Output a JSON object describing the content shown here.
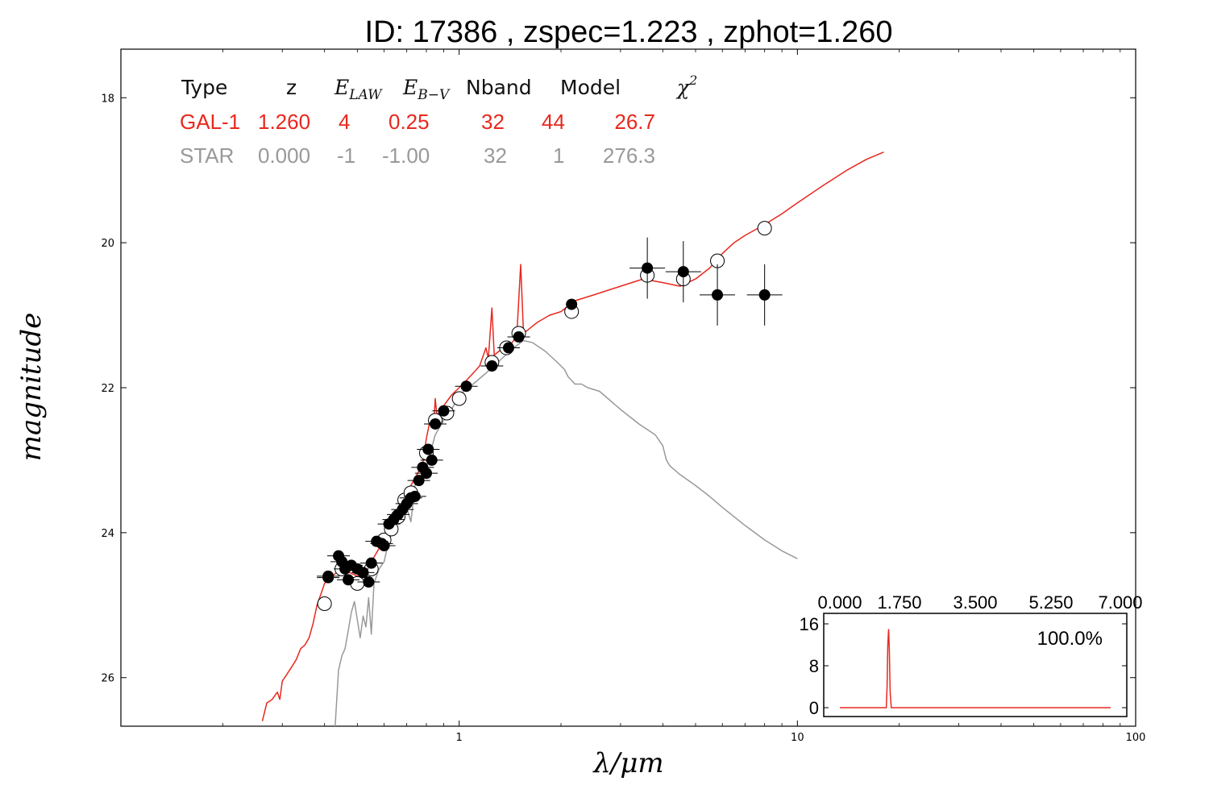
{
  "chart_data": {
    "type": "scatter",
    "title": "ID:  17386 , zspec=1.223 , zphot=1.260",
    "xlabel": "λ/μm",
    "ylabel": "magnitude",
    "x_scale": "log",
    "xlim": [
      0.1,
      100
    ],
    "ylim": [
      26.67,
      17.33
    ],
    "x_ticks": [
      "1",
      "10",
      "100"
    ],
    "y_ticks": [
      "18",
      "20",
      "22",
      "24",
      "26"
    ],
    "table": {
      "headers": [
        "Type",
        "z",
        "E_LAW",
        "E_B−V",
        "Nband",
        "Model",
        "χ²"
      ],
      "rows": [
        {
          "name": "GAL-1",
          "color": "#e8281e",
          "values": [
            "GAL-1",
            "1.260",
            "4",
            "0.25",
            "32",
            "44",
            "26.7"
          ]
        },
        {
          "name": "STAR",
          "color": "#999999",
          "values": [
            "STAR",
            "0.000",
            "-1",
            "-1.00",
            "32",
            "1",
            "276.3"
          ]
        }
      ]
    },
    "series": [
      {
        "kind": "line",
        "color": "#e8281e",
        "points": [
          [
            0.262,
            26.6
          ],
          [
            0.27,
            26.35
          ],
          [
            0.28,
            26.3
          ],
          [
            0.29,
            26.2
          ],
          [
            0.295,
            26.3
          ],
          [
            0.3,
            26.05
          ],
          [
            0.31,
            25.95
          ],
          [
            0.32,
            25.85
          ],
          [
            0.33,
            25.75
          ],
          [
            0.34,
            25.6
          ],
          [
            0.35,
            25.55
          ],
          [
            0.36,
            25.45
          ],
          [
            0.37,
            25.25
          ],
          [
            0.38,
            25.0
          ],
          [
            0.39,
            24.85
          ],
          [
            0.4,
            24.7
          ],
          [
            0.42,
            24.6
          ],
          [
            0.45,
            24.5
          ],
          [
            0.5,
            24.6
          ],
          [
            0.55,
            24.4
          ],
          [
            0.6,
            24.1
          ],
          [
            0.64,
            23.75
          ],
          [
            0.68,
            23.6
          ],
          [
            0.72,
            23.35
          ],
          [
            0.75,
            23.2
          ],
          [
            0.78,
            23.05
          ],
          [
            0.8,
            22.7
          ],
          [
            0.82,
            22.45
          ],
          [
            0.84,
            22.55
          ],
          [
            0.85,
            22.15
          ],
          [
            0.86,
            22.4
          ],
          [
            0.87,
            22.35
          ],
          [
            0.9,
            22.25
          ],
          [
            0.95,
            22.1
          ],
          [
            1.0,
            22.0
          ],
          [
            1.05,
            21.9
          ],
          [
            1.1,
            21.8
          ],
          [
            1.15,
            21.7
          ],
          [
            1.2,
            21.45
          ],
          [
            1.22,
            21.6
          ],
          [
            1.25,
            20.9
          ],
          [
            1.27,
            21.55
          ],
          [
            1.35,
            21.45
          ],
          [
            1.42,
            21.4
          ],
          [
            1.48,
            21.3
          ],
          [
            1.52,
            20.3
          ],
          [
            1.55,
            21.25
          ],
          [
            1.6,
            21.2
          ],
          [
            1.7,
            21.1
          ],
          [
            1.85,
            21.0
          ],
          [
            2.0,
            20.95
          ],
          [
            2.2,
            20.8
          ],
          [
            2.5,
            20.72
          ],
          [
            3.0,
            20.6
          ],
          [
            3.5,
            20.5
          ],
          [
            4.0,
            20.55
          ],
          [
            4.5,
            20.6
          ],
          [
            5.0,
            20.5
          ],
          [
            5.5,
            20.35
          ],
          [
            6.0,
            20.15
          ],
          [
            6.5,
            20.0
          ],
          [
            7.0,
            19.9
          ],
          [
            8.0,
            19.75
          ],
          [
            9.0,
            19.6
          ],
          [
            10.0,
            19.45
          ],
          [
            12.0,
            19.2
          ],
          [
            14.0,
            19.0
          ],
          [
            16.0,
            18.85
          ],
          [
            18.0,
            18.75
          ]
        ]
      },
      {
        "kind": "line",
        "color": "#999999",
        "points": [
          [
            0.43,
            26.67
          ],
          [
            0.44,
            25.9
          ],
          [
            0.45,
            25.7
          ],
          [
            0.46,
            25.6
          ],
          [
            0.47,
            25.35
          ],
          [
            0.48,
            25.1
          ],
          [
            0.49,
            24.95
          ],
          [
            0.5,
            25.2
          ],
          [
            0.51,
            25.45
          ],
          [
            0.52,
            25.15
          ],
          [
            0.53,
            25.3
          ],
          [
            0.54,
            24.9
          ],
          [
            0.55,
            25.4
          ],
          [
            0.56,
            24.7
          ],
          [
            0.58,
            24.5
          ],
          [
            0.6,
            24.4
          ],
          [
            0.62,
            24.1
          ],
          [
            0.65,
            23.9
          ],
          [
            0.7,
            23.65
          ],
          [
            0.72,
            23.85
          ],
          [
            0.74,
            23.35
          ],
          [
            0.78,
            23.2
          ],
          [
            0.8,
            23.1
          ],
          [
            0.85,
            22.65
          ],
          [
            0.9,
            22.45
          ],
          [
            0.95,
            22.3
          ],
          [
            1.0,
            22.1
          ],
          [
            1.1,
            21.95
          ],
          [
            1.2,
            21.8
          ],
          [
            1.3,
            21.65
          ],
          [
            1.45,
            21.45
          ],
          [
            1.55,
            21.35
          ],
          [
            1.65,
            21.38
          ],
          [
            1.8,
            21.5
          ],
          [
            1.95,
            21.65
          ],
          [
            2.05,
            21.75
          ],
          [
            2.1,
            21.85
          ],
          [
            2.2,
            21.95
          ],
          [
            2.3,
            21.95
          ],
          [
            2.4,
            22.0
          ],
          [
            2.6,
            22.05
          ],
          [
            3.0,
            22.3
          ],
          [
            3.4,
            22.5
          ],
          [
            3.8,
            22.65
          ],
          [
            4.0,
            22.8
          ],
          [
            4.1,
            23.0
          ],
          [
            4.2,
            23.08
          ],
          [
            4.5,
            23.2
          ],
          [
            5.0,
            23.35
          ],
          [
            5.5,
            23.5
          ],
          [
            6.0,
            23.65
          ],
          [
            7.0,
            23.9
          ],
          [
            8.0,
            24.1
          ],
          [
            9.0,
            24.25
          ],
          [
            10.0,
            24.36
          ]
        ]
      },
      {
        "kind": "observed",
        "points": [
          [
            0.41,
            24.62
          ],
          [
            0.41,
            24.6
          ],
          [
            0.44,
            24.32
          ],
          [
            0.45,
            24.4
          ],
          [
            0.46,
            24.5
          ],
          [
            0.47,
            24.65
          ],
          [
            0.48,
            24.45
          ],
          [
            0.5,
            24.5
          ],
          [
            0.52,
            24.55
          ],
          [
            0.54,
            24.68
          ],
          [
            0.55,
            24.42
          ],
          [
            0.57,
            24.12
          ],
          [
            0.59,
            24.15
          ],
          [
            0.6,
            24.18
          ],
          [
            0.62,
            23.88
          ],
          [
            0.64,
            23.82
          ],
          [
            0.66,
            23.75
          ],
          [
            0.68,
            23.68
          ],
          [
            0.7,
            23.6
          ],
          [
            0.72,
            23.52
          ],
          [
            0.74,
            23.5
          ],
          [
            0.76,
            23.28
          ],
          [
            0.78,
            23.1
          ],
          [
            0.8,
            23.18
          ],
          [
            0.81,
            22.85
          ],
          [
            0.83,
            23.0
          ],
          [
            0.85,
            22.5
          ],
          [
            0.9,
            22.32
          ],
          [
            1.05,
            21.98
          ],
          [
            1.25,
            21.7
          ],
          [
            1.4,
            21.45
          ],
          [
            1.5,
            21.3
          ],
          [
            2.15,
            20.85
          ],
          [
            3.6,
            20.35
          ],
          [
            4.6,
            20.4
          ],
          [
            5.8,
            20.72
          ],
          [
            8.0,
            20.72
          ]
        ]
      },
      {
        "kind": "model",
        "points": [
          [
            0.4,
            24.98
          ],
          [
            0.45,
            24.5
          ],
          [
            0.5,
            24.7
          ],
          [
            0.55,
            24.5
          ],
          [
            0.6,
            24.1
          ],
          [
            0.63,
            23.95
          ],
          [
            0.66,
            23.78
          ],
          [
            0.69,
            23.55
          ],
          [
            0.72,
            23.45
          ],
          [
            0.8,
            22.9
          ],
          [
            0.85,
            22.45
          ],
          [
            0.92,
            22.35
          ],
          [
            1.0,
            22.15
          ],
          [
            1.25,
            21.65
          ],
          [
            1.38,
            21.45
          ],
          [
            1.5,
            21.25
          ],
          [
            2.15,
            20.95
          ],
          [
            3.6,
            20.45
          ],
          [
            4.6,
            20.5
          ],
          [
            5.8,
            20.25
          ],
          [
            8.0,
            19.8
          ]
        ]
      }
    ],
    "inset": {
      "type": "line",
      "xlim": [
        0,
        7
      ],
      "ylim": [
        0,
        16
      ],
      "x_ticks": [
        "0.000",
        "1.750",
        "3.500",
        "5.250",
        "7.000"
      ],
      "y_ticks": [
        "0",
        "8",
        "16"
      ],
      "label": "100.0%",
      "color": "#e8281e",
      "points": [
        [
          0,
          0
        ],
        [
          1.2,
          0
        ],
        [
          1.22,
          4
        ],
        [
          1.24,
          12
        ],
        [
          1.26,
          15
        ],
        [
          1.28,
          11
        ],
        [
          1.3,
          3
        ],
        [
          1.33,
          0
        ],
        [
          7,
          0
        ]
      ]
    }
  }
}
